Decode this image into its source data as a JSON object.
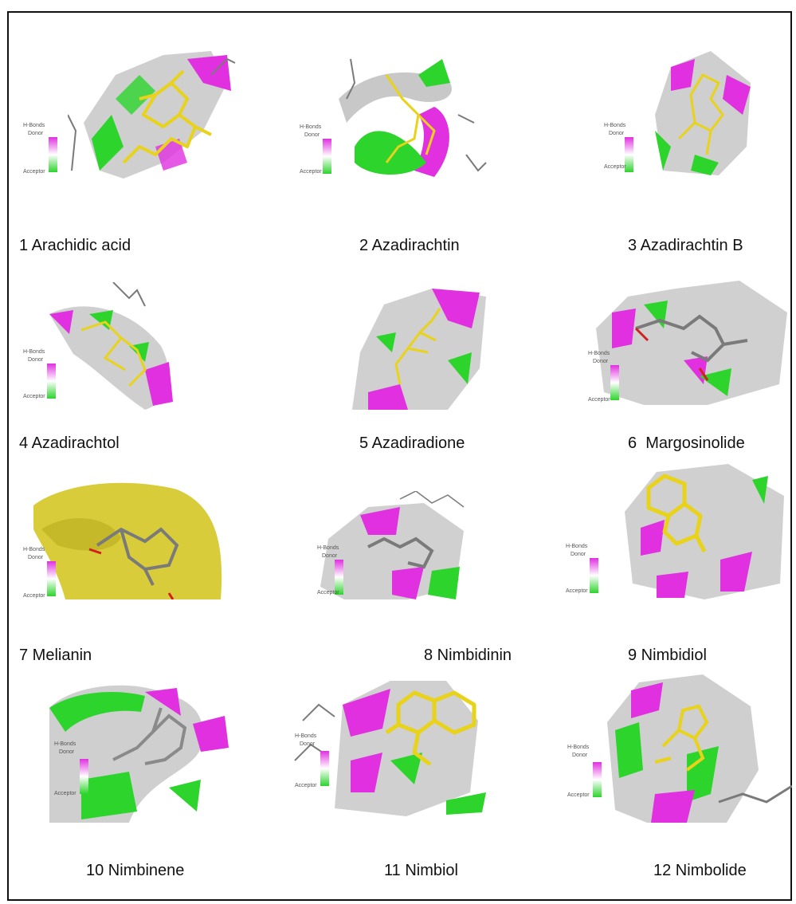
{
  "legend": {
    "title": "H-Bonds",
    "donor": "Donor",
    "acceptor": "Acceptor"
  },
  "colors": {
    "ligand": "#e8d21a",
    "donor_surface": "#e030e0",
    "acceptor_surface": "#2cd42c",
    "neutral_surface": "#c8c8c8",
    "stick": "#7a7a7a",
    "hydrophobic_surface": "#d9cc3a"
  },
  "panels": [
    {
      "caption": "1 Arachidic acid"
    },
    {
      "caption": "2 Azadirachtin"
    },
    {
      "caption": "3 Azadirachtin B"
    },
    {
      "caption": "4 Azadirachtol"
    },
    {
      "caption": "5 Azadiradione"
    },
    {
      "caption": "6  Margosinolide"
    },
    {
      "caption": "7 Melianin"
    },
    {
      "caption": "8 Nimbidinin"
    },
    {
      "caption": "9 Nimbidiol"
    },
    {
      "caption": "10 Nimbinene"
    },
    {
      "caption": "11 Nimbiol"
    },
    {
      "caption": "12 Nimbolide"
    }
  ]
}
